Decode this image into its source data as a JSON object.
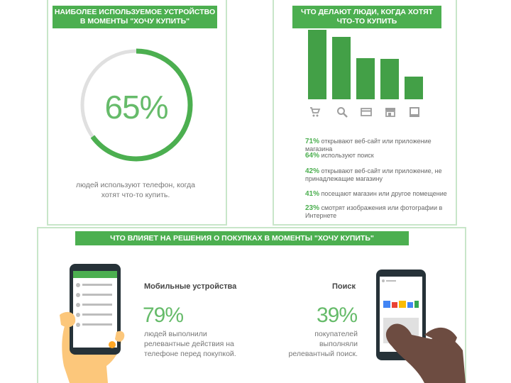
{
  "top_left": {
    "banner": "НАИБОЛЕЕ ИСПОЛЬЗУЕМОЕ УСТРОЙСТВО В МОМЕНТЫ \"ХОЧУ КУПИТЬ\"",
    "percent_label": "65%",
    "percent_value": 65,
    "caption": "людей используют телефон, когда хотят что-то купить."
  },
  "top_right": {
    "banner": "ЧТО ДЕЛАЮТ ЛЮДИ, КОГДА ХОТЯТ ЧТО-ТО КУПИТЬ",
    "icons": [
      "cart-icon",
      "search-icon",
      "card-icon",
      "store-icon",
      "image-icon"
    ],
    "stats": [
      {
        "pct": "71%",
        "text": "открывают веб-сайт или приложение магазина"
      },
      {
        "pct": "64%",
        "text": "используют поиск"
      },
      {
        "pct": "42%",
        "text": "открывают веб-сайт или приложение, не принадлежащие магазину"
      },
      {
        "pct": "41%",
        "text": "посещают магазин или другое помещение"
      },
      {
        "pct": "23%",
        "text": "смотрят изображения или фотографии в Интернете"
      }
    ]
  },
  "chart_data": {
    "type": "bar",
    "categories": [
      "cart-icon",
      "search-icon",
      "card-icon",
      "store-icon",
      "image-icon"
    ],
    "values": [
      71,
      64,
      42,
      41,
      23
    ],
    "title": "ЧТО ДЕЛАЮТ ЛЮДИ, КОГДА ХОТЯТ ЧТО-ТО КУПИТЬ",
    "xlabel": "",
    "ylabel": "",
    "ylim": [
      0,
      71
    ]
  },
  "bottom": {
    "banner": "ЧТО ВЛИЯЕТ НА РЕШЕНИЯ О ПОКУПКАХ В МОМЕНТЫ \"ХОЧУ КУПИТЬ\"",
    "left": {
      "title": "Мобильные устройства",
      "percent": "79%",
      "desc_lines": [
        "людей выполнили",
        "релевантные действия на",
        "телефоне перед покупкой."
      ]
    },
    "right": {
      "title": "Поиск",
      "percent": "39%",
      "desc_lines": [
        "покупателей",
        "выполняли",
        "релевантный поиск."
      ]
    }
  },
  "colors": {
    "accent": "#4caf50",
    "accent_light": "#66bb6a",
    "track": "#e0e0e0",
    "border": "#c8e6c9"
  }
}
